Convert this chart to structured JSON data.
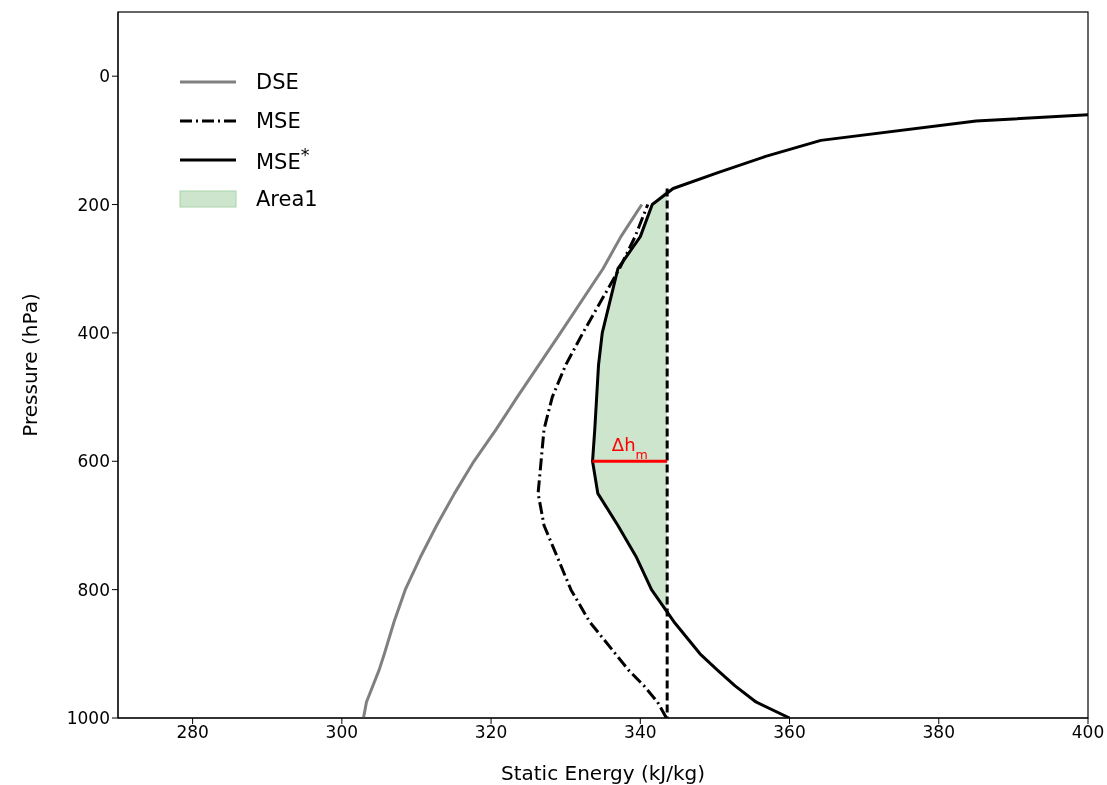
{
  "chart_data": {
    "type": "line",
    "xlabel": "Static Energy (kJ/kg)",
    "ylabel": "Pressure (hPa)",
    "xlim": [
      270,
      400
    ],
    "xticks": [
      280,
      300,
      320,
      340,
      360,
      380,
      400
    ],
    "ylim": [
      1000,
      -100
    ],
    "yticks": [
      0,
      200,
      400,
      600,
      800,
      1000
    ],
    "legend": "top left",
    "marker": "none",
    "series": [
      {
        "name": "DSE",
        "color": "#808080",
        "line_style": "solid",
        "x": [
          302.9,
          303.3,
          305,
          305.7,
          307,
          308.5,
          310.5,
          312.7,
          315.1,
          317.7,
          320.7,
          323.5,
          329.3,
          335,
          337.4,
          340.2
        ],
        "values": [
          1000,
          975,
          925,
          900,
          850,
          800,
          750,
          700,
          650,
          600,
          550,
          500,
          400,
          300,
          250,
          200
        ]
      },
      {
        "name": "MSE",
        "color": "#000000",
        "line_style": "dashdot",
        "x": [
          343.5,
          342.3,
          340.5,
          338.4,
          333.2,
          330.7,
          327.1,
          326.3,
          326.7,
          327.1,
          328.2,
          330,
          332.3,
          337.2,
          339.3,
          341
        ],
        "values": [
          1000,
          975,
          950,
          925,
          850,
          800,
          700,
          650,
          600,
          550,
          500,
          450,
          400,
          300,
          250,
          200
        ]
      },
      {
        "name": "MSE$^{*}$",
        "color": "#000000",
        "line_style": "solid",
        "x": [
          360,
          355.5,
          352.7,
          350.3,
          348,
          344.5,
          341.5,
          339.5,
          337,
          334.3,
          333.6,
          333.9,
          334.4,
          334.9,
          337,
          340,
          341.6,
          344.4,
          350.5,
          356.8,
          364.2,
          385,
          400
        ],
        "values": [
          1000,
          975,
          950,
          925,
          900,
          850,
          800,
          750,
          700,
          650,
          600,
          550,
          450,
          400,
          300,
          250,
          200,
          175,
          150,
          125,
          100,
          70,
          60
        ]
      },
      {
        "name": "Area1",
        "type": "area",
        "color": "#cde5cd",
        "x": [
          343.6,
          341.6,
          340,
          337,
          334.9,
          334.4,
          333.9,
          333.6,
          334.3,
          337,
          339.5,
          341.5,
          343.6
        ],
        "values": [
          175,
          200,
          250,
          300,
          400,
          450,
          550,
          600,
          650,
          700,
          750,
          800,
          840
        ]
      },
      {
        "color": "#000000",
        "line_style": "dashed",
        "x": [
          343.6,
          343.6
        ],
        "values": [
          175,
          1000
        ]
      },
      {
        "color": "#ff0000",
        "line_style": "solid",
        "x": [
          333.6,
          343.6
        ],
        "values": [
          600,
          600
        ]
      }
    ],
    "annotations": [
      {
        "text": "Δh$_{m}$",
        "x": 338.6,
        "y": 600
      }
    ]
  }
}
